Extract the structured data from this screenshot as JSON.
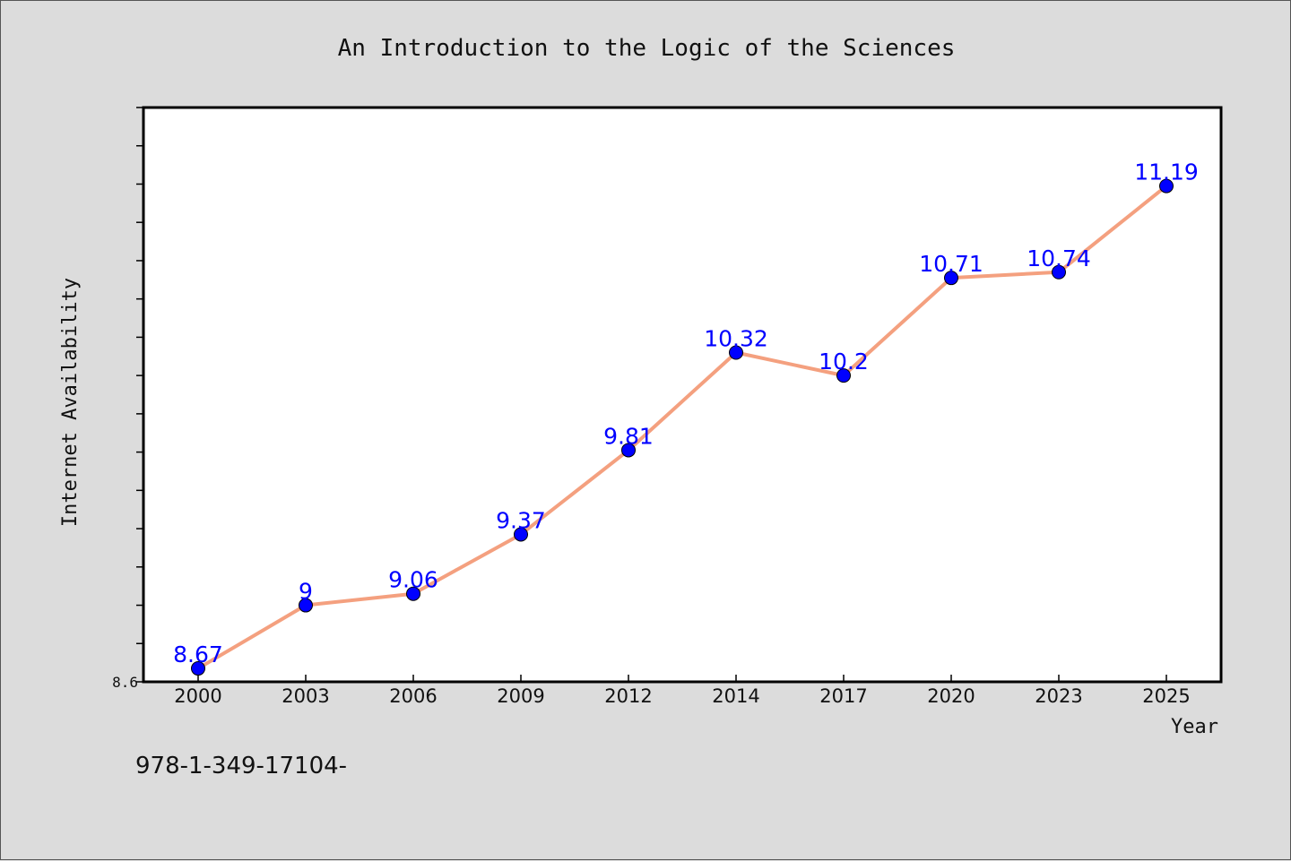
{
  "chart_data": {
    "type": "line",
    "title": "An Introduction to the Logic of the Sciences",
    "xlabel": "Year",
    "ylabel": "Internet Availability",
    "categories": [
      "2000",
      "2003",
      "2006",
      "2009",
      "2012",
      "2014",
      "2017",
      "2020",
      "2023",
      "2025"
    ],
    "series": [
      {
        "values": [
          8.67,
          9,
          9.06,
          9.37,
          9.81,
          10.32,
          10.2,
          10.71,
          10.74,
          11.19
        ]
      }
    ],
    "data_labels": [
      "8.67",
      "9",
      "9.06",
      "9.37",
      "9.81",
      "10.32",
      "10.2",
      "10.71",
      "10.74",
      "11.19"
    ],
    "y_tick_label": "8.6",
    "ylim": [
      8.6,
      11.6
    ],
    "grid": false,
    "legend": "none",
    "colors": {
      "line": "#f4a07f",
      "marker": "#0000ff",
      "data_label": "#0000ff",
      "background": "#dcdcdc",
      "plot_background": "#ffffff"
    }
  },
  "footer_text": "978-1-349-17104-"
}
